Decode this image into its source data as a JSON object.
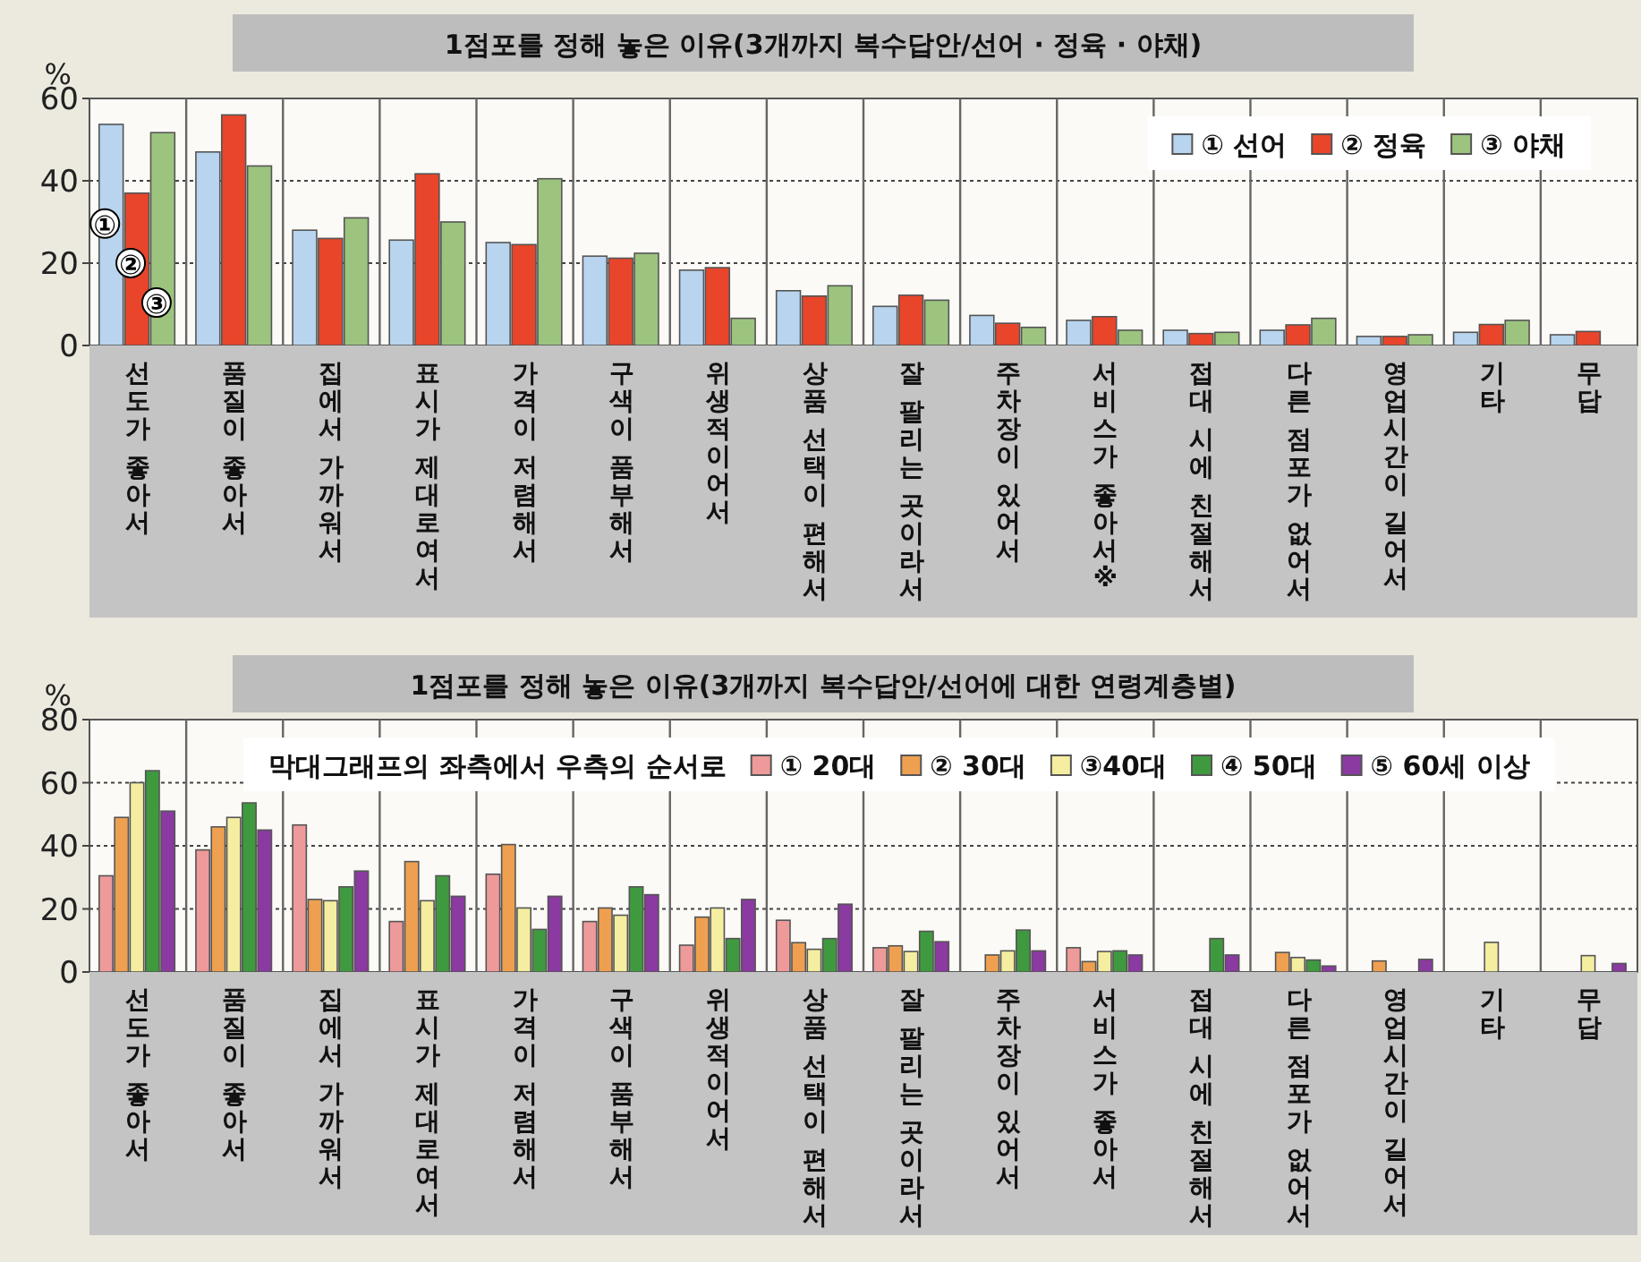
{
  "chart_data": [
    {
      "type": "bar",
      "title": "1점포를 정해 놓은 이유(3개까지 복수답안/선어 · 정육 · 야채)",
      "ylabel": "%",
      "categories": [
        "선도가 좋아서",
        "품질이 좋아서",
        "집에서 가까워서",
        "표시가 제대로여서",
        "가격이 저렴해서",
        "구색이 품부해서",
        "위생적이어서",
        "상품 선택이 편해서",
        "잘 팔리는 곳이라서",
        "주차장이 있어서",
        "서비스가 좋아서※",
        "접대 시에 친절해서",
        "다른 점포가 없어서",
        "영업시간이 길어서",
        "기타",
        "무답"
      ],
      "series": [
        {
          "name": "① 선어",
          "color": "#b8d4ee",
          "values": [
            53.7,
            47,
            28,
            25.6,
            25,
            21.7,
            18.3,
            13.3,
            9.5,
            7.3,
            6.1,
            3.7,
            3.7,
            2.2,
            3.2,
            2.6
          ]
        },
        {
          "name": "② 정육",
          "color": "#e8452a",
          "values": [
            37,
            56,
            26,
            41.7,
            24.5,
            21.2,
            18.9,
            12,
            12.2,
            5.4,
            7,
            2.9,
            5,
            2.2,
            5.1,
            3.4
          ]
        },
        {
          "name": "③ 야채",
          "color": "#9cc47e",
          "values": [
            51.7,
            43.6,
            31,
            30,
            40.5,
            22.4,
            6.6,
            14.5,
            11,
            4.4,
            3.7,
            3.2,
            6.6,
            2.6,
            6.1,
            null
          ]
        }
      ],
      "annotations": [
        "①",
        "②",
        "③"
      ],
      "ylim": [
        0,
        60
      ],
      "yticks": [
        0,
        20,
        40,
        60
      ],
      "grid": "y",
      "legend": "top right"
    },
    {
      "type": "bar",
      "title": "1점포를 정해 놓은 이유(3개까지 복수답안/선어에 대한 연령계층별)",
      "ylabel": "%",
      "legend_title": "막대그래프의 좌측에서 우측의 순서로",
      "categories": [
        "선도가 좋아서",
        "품질이 좋아서",
        "집에서 가까워서",
        "표시가 제대로여서",
        "가격이 저렴해서",
        "구색이 품부해서",
        "위생적이어서",
        "상품 선택이 편해서",
        "잘 팔리는 곳이라서",
        "주차장이 있어서",
        "서비스가 좋아서",
        "접대 시에 친절해서",
        "다른 점포가 없어서",
        "영업시간이 길어서",
        "기타",
        "무답"
      ],
      "series": [
        {
          "name": "① 20대",
          "color": "#ee9a9a",
          "values": [
            30.5,
            38.7,
            46.6,
            16,
            31,
            16,
            8.5,
            16.4,
            7.7,
            null,
            7.7,
            null,
            null,
            null,
            null,
            null
          ]
        },
        {
          "name": "② 30대",
          "color": "#eea050",
          "values": [
            49,
            46,
            23,
            35,
            40.4,
            20.3,
            17.4,
            9.3,
            8.3,
            5.4,
            3.3,
            null,
            6.2,
            3.5,
            null,
            null
          ]
        },
        {
          "name": "③40대",
          "color": "#f5eda0",
          "values": [
            60,
            49,
            22.6,
            22.6,
            20.3,
            18,
            20.3,
            7.2,
            6.5,
            6.7,
            6.5,
            null,
            4.6,
            null,
            9.4,
            5.2
          ]
        },
        {
          "name": "④ 50대",
          "color": "#3f9a3f",
          "values": [
            63.8,
            53.6,
            27,
            30.5,
            13.5,
            27,
            10.6,
            10.6,
            12.9,
            13.3,
            6.7,
            10.6,
            3.8,
            null,
            null,
            null
          ]
        },
        {
          "name": "⑤ 60세 이상",
          "color": "#8a3aa0",
          "values": [
            51,
            45,
            32,
            24,
            24,
            24.5,
            23,
            21.5,
            9.6,
            6.7,
            5.4,
            5.4,
            1.9,
            4,
            null,
            2.7
          ]
        }
      ],
      "ylim": [
        0,
        80
      ],
      "yticks": [
        0,
        20,
        40,
        60,
        80
      ],
      "grid": "y",
      "legend": "top"
    }
  ]
}
